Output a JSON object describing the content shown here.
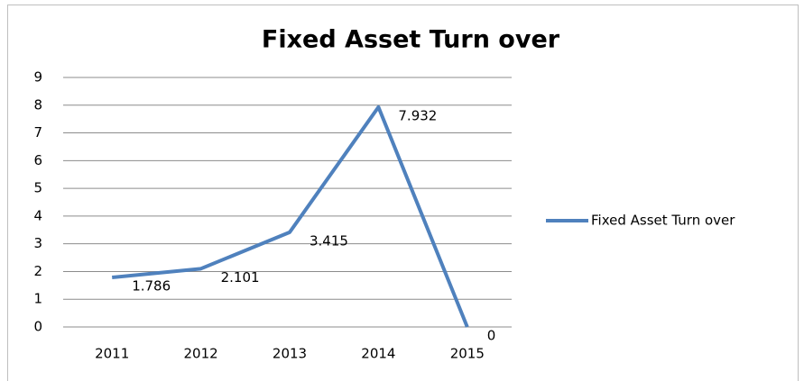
{
  "chart_data": {
    "type": "line",
    "title": "Fixed Asset Turn over",
    "categories": [
      "2011",
      "2012",
      "2013",
      "2014",
      "2015"
    ],
    "series": [
      {
        "name": "Fixed Asset Turn over",
        "color": "#4f81bd",
        "values": [
          1.786,
          2.101,
          3.415,
          7.932,
          0
        ]
      }
    ],
    "ylim": [
      0,
      9
    ],
    "yticks": [
      0,
      1,
      2,
      3,
      4,
      5,
      6,
      7,
      8,
      9
    ],
    "grid": true,
    "legend": "right",
    "data_labels": true
  }
}
